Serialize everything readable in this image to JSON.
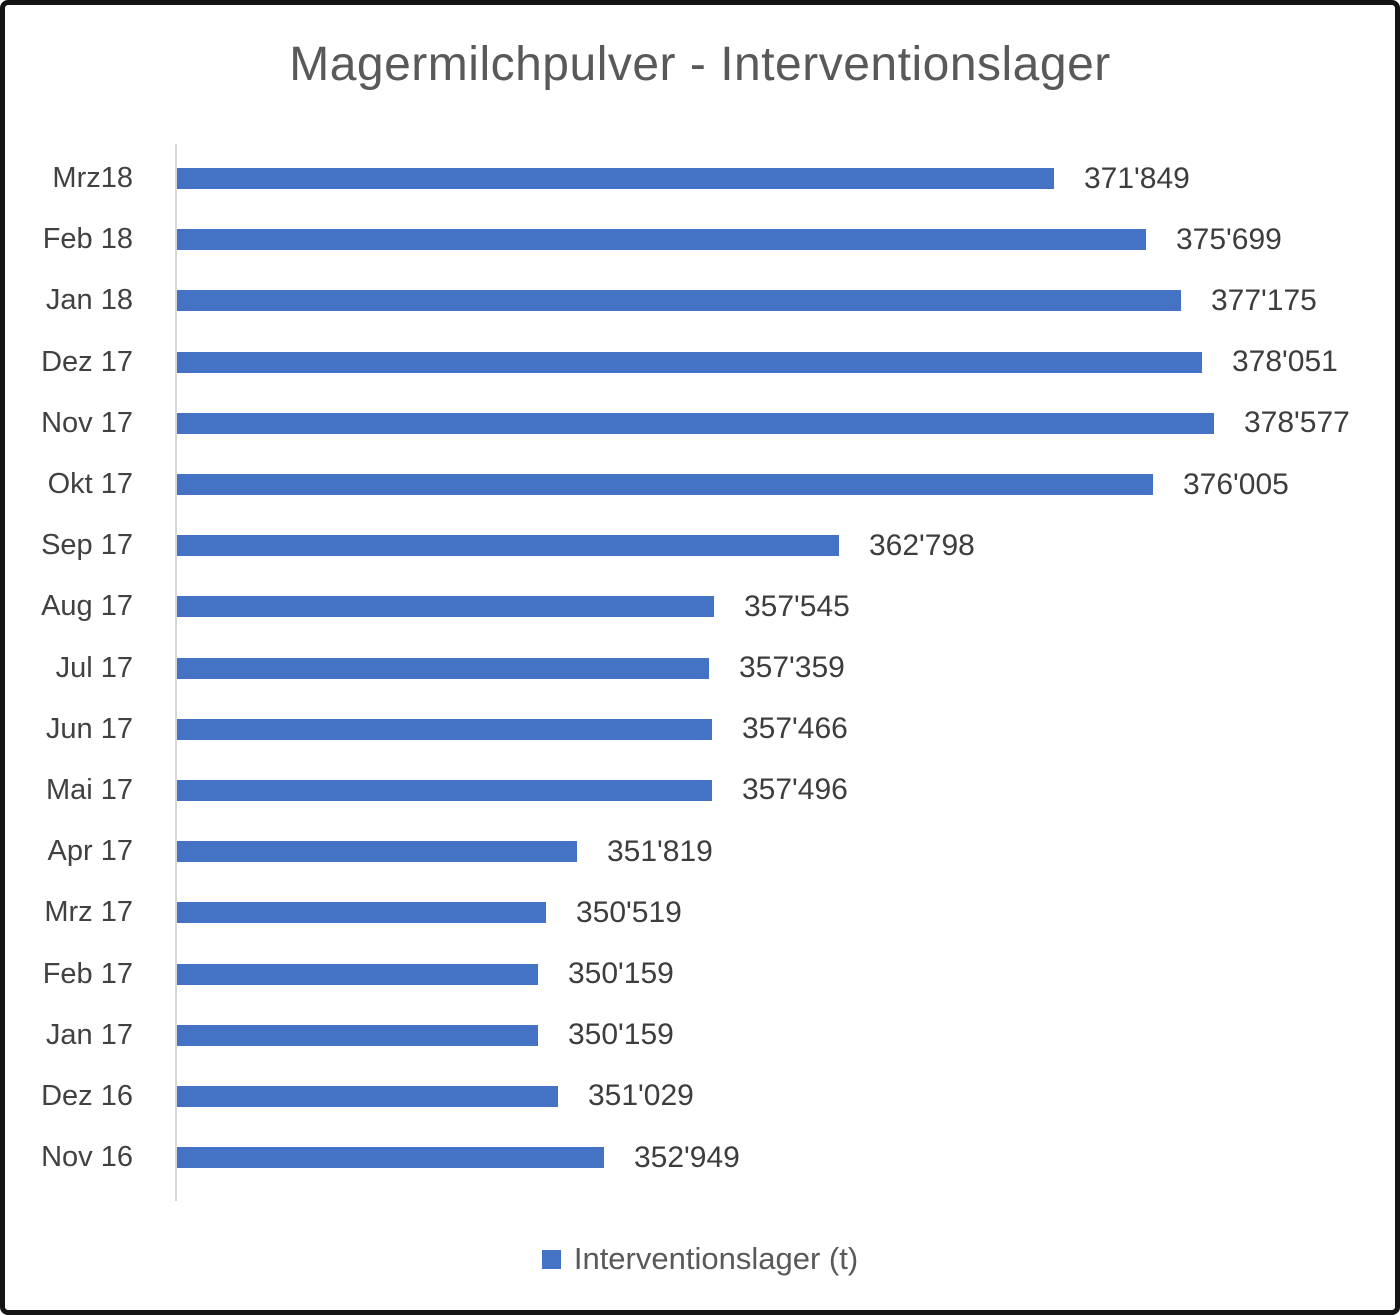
{
  "title": "Magermilchpulver - Interventionslager",
  "legend": {
    "label": "Interventionslager (t)"
  },
  "colors": {
    "bar": "#4472C4",
    "title_text": "#595959",
    "category_text": "#414141",
    "value_text": "#3D3D3D",
    "axis_line": "#D6D6D6",
    "page_border": "#141414"
  },
  "chart_data": {
    "type": "bar",
    "orientation": "horizontal",
    "title": "Magermilchpulver - Interventionslager",
    "categories": [
      "Mrz18",
      "Feb 18",
      "Jan 18",
      "Dez 17",
      "Nov 17",
      "Okt 17",
      "Sep 17",
      "Aug 17",
      "Jul 17",
      "Jun 17",
      "Mai 17",
      "Apr 17",
      "Mrz 17",
      "Feb 17",
      "Jan 17",
      "Dez 16",
      "Nov 16"
    ],
    "category_order": "top-to-bottom",
    "values": [
      371849,
      375699,
      377175,
      378051,
      378577,
      376005,
      362798,
      357545,
      357359,
      357466,
      357496,
      351819,
      350519,
      350159,
      350159,
      351029,
      352949
    ],
    "value_labels": [
      "371'849",
      "375'699",
      "377'175",
      "378'051",
      "378'577",
      "376'005",
      "362'798",
      "357'545",
      "357'359",
      "357'466",
      "357'496",
      "351'819",
      "350'519",
      "350'159",
      "350'159",
      "351'029",
      "352'949"
    ],
    "series_name": "Interventionslager (t)",
    "legend_entries": [
      "Interventionslager (t)"
    ],
    "legend_position": "bottom",
    "xlabel": "",
    "ylabel": "",
    "xlim": [
      335000,
      385000
    ],
    "grid": false,
    "data_labels": true
  }
}
